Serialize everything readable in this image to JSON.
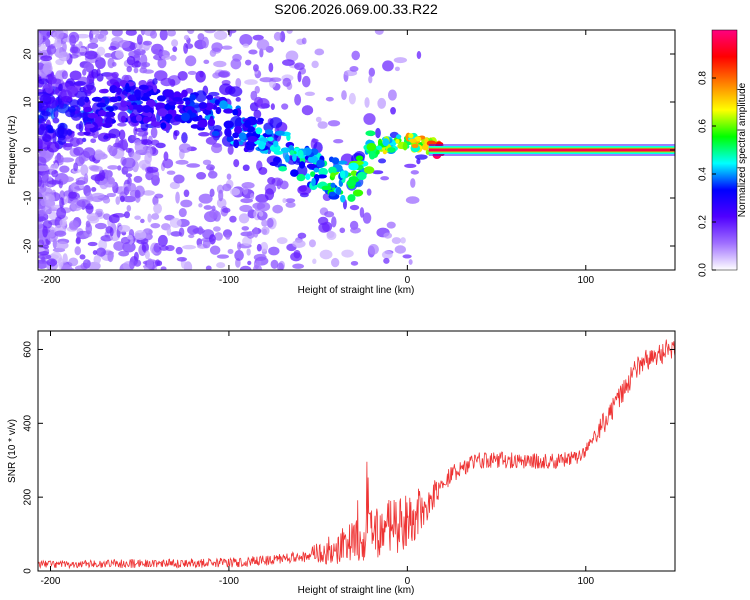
{
  "title": "S206.2026.069.00.33.R22",
  "chart_data": [
    {
      "type": "heatmap",
      "name": "spectrogram",
      "xlabel": "Height of straight line (km)",
      "ylabel": "Frequency (Hz)",
      "xlim": [
        -207,
        150
      ],
      "ylim": [
        -25,
        25
      ],
      "xticks": [
        "-200",
        "-100",
        "0",
        "100"
      ],
      "xtick_values": [
        -200,
        -100,
        0,
        100
      ],
      "yticks": [
        "-20",
        "-10",
        "0",
        "10",
        "20"
      ],
      "ytick_values": [
        -20,
        -10,
        0,
        10,
        20
      ],
      "colorbar": {
        "label": "Normalized spectral amplitude",
        "range": [
          0,
          1
        ],
        "ticks": [
          "0.0",
          "0.2",
          "0.4",
          "0.6",
          "0.8"
        ],
        "tick_values": [
          0.0,
          0.2,
          0.4,
          0.6,
          0.8
        ],
        "stops": [
          "#ffffff",
          "#a070ff",
          "#5000ff",
          "#0000ff",
          "#00ffff",
          "#00ff00",
          "#ffff00",
          "#ff8000",
          "#ff0000",
          "#ff0080"
        ]
      },
      "ridge": {
        "x": [
          -180,
          -160,
          -140,
          -120,
          -100,
          -90,
          -80,
          -70,
          -60,
          -50,
          -40,
          -30,
          -20,
          -10,
          0,
          10,
          20,
          150
        ],
        "y": [
          7,
          10,
          9,
          8,
          6,
          4,
          2,
          0,
          -2,
          -5,
          -6,
          -7,
          0,
          1,
          2,
          1,
          0,
          0
        ],
        "amplitude": [
          0.3,
          0.3,
          0.3,
          0.35,
          0.4,
          0.4,
          0.45,
          0.45,
          0.5,
          0.5,
          0.55,
          0.55,
          0.6,
          0.65,
          0.7,
          0.8,
          0.95,
          0.95
        ]
      },
      "stable_line": {
        "x_start": 12,
        "x_end": 150,
        "frequency": 0,
        "amplitude": 0.95
      }
    },
    {
      "type": "line",
      "name": "snr",
      "xlabel": "Height of straight line (km)",
      "ylabel": "SNR (10 * v/v)",
      "xlim": [
        -207,
        150
      ],
      "ylim": [
        0,
        650
      ],
      "xticks": [
        "-200",
        "-100",
        "0",
        "100"
      ],
      "xtick_values": [
        -200,
        -100,
        0,
        100
      ],
      "yticks": [
        "0",
        "200",
        "400",
        "600"
      ],
      "ytick_values": [
        0,
        200,
        400,
        600
      ],
      "color": "#ee3333",
      "trend_x": [
        -207,
        -150,
        -100,
        -80,
        -60,
        -45,
        -30,
        -20,
        -10,
        0,
        10,
        20,
        30,
        40,
        60,
        80,
        95,
        100,
        110,
        120,
        130,
        150
      ],
      "trend_y": [
        18,
        20,
        22,
        28,
        40,
        55,
        80,
        100,
        120,
        130,
        180,
        240,
        280,
        300,
        300,
        295,
        310,
        330,
        400,
        480,
        560,
        610
      ],
      "noise_x": [
        -207,
        -60,
        -40,
        -20,
        0,
        20,
        100,
        110,
        150
      ],
      "noise_amp": [
        10,
        15,
        45,
        70,
        80,
        25,
        20,
        30,
        30
      ]
    }
  ]
}
